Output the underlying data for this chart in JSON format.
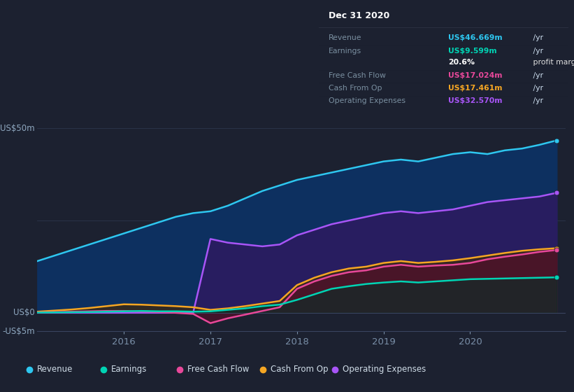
{
  "background_color": "#1c2130",
  "plot_bg_color": "#1c2130",
  "ylim": [
    -5,
    55
  ],
  "xlim": [
    2015.0,
    2021.1
  ],
  "xticks": [
    2016,
    2017,
    2018,
    2019,
    2020
  ],
  "series": {
    "revenue": {
      "label": "Revenue",
      "color": "#2ec7f0",
      "fill_color": "#0d3a5c",
      "x": [
        2015.0,
        2015.2,
        2015.4,
        2015.6,
        2015.8,
        2016.0,
        2016.2,
        2016.4,
        2016.6,
        2016.8,
        2017.0,
        2017.2,
        2017.4,
        2017.6,
        2017.8,
        2018.0,
        2018.2,
        2018.4,
        2018.6,
        2018.8,
        2019.0,
        2019.2,
        2019.4,
        2019.6,
        2019.8,
        2020.0,
        2020.2,
        2020.4,
        2020.6,
        2020.8,
        2021.0
      ],
      "y": [
        14,
        15.5,
        17,
        18.5,
        20,
        21.5,
        23,
        24.5,
        26,
        27,
        27.5,
        29,
        31,
        33,
        34.5,
        36,
        37,
        38,
        39,
        40,
        41,
        41.5,
        41,
        42,
        43,
        43.5,
        43,
        44,
        44.5,
        45.5,
        46.7
      ]
    },
    "operating_expenses": {
      "label": "Operating Expenses",
      "color": "#a855f7",
      "fill_color": "#2d1a5e",
      "x": [
        2015.0,
        2015.2,
        2015.4,
        2015.6,
        2015.8,
        2016.0,
        2016.2,
        2016.4,
        2016.6,
        2016.8,
        2017.0,
        2017.2,
        2017.4,
        2017.6,
        2017.8,
        2018.0,
        2018.2,
        2018.4,
        2018.6,
        2018.8,
        2019.0,
        2019.2,
        2019.4,
        2019.6,
        2019.8,
        2020.0,
        2020.2,
        2020.4,
        2020.6,
        2020.8,
        2021.0
      ],
      "y": [
        0,
        0,
        0,
        0,
        0,
        0,
        0,
        0,
        0,
        0,
        20,
        19,
        18.5,
        18,
        18.5,
        21,
        22.5,
        24,
        25,
        26,
        27,
        27.5,
        27,
        27.5,
        28,
        29,
        30,
        30.5,
        31,
        31.5,
        32.5
      ]
    },
    "cash_from_op": {
      "label": "Cash From Op",
      "color": "#f5a623",
      "fill_color": "#5a3d1a",
      "x": [
        2015.0,
        2015.2,
        2015.4,
        2015.6,
        2015.8,
        2016.0,
        2016.2,
        2016.4,
        2016.6,
        2016.8,
        2017.0,
        2017.2,
        2017.4,
        2017.6,
        2017.8,
        2018.0,
        2018.2,
        2018.4,
        2018.6,
        2018.8,
        2019.0,
        2019.2,
        2019.4,
        2019.6,
        2019.8,
        2020.0,
        2020.2,
        2020.4,
        2020.6,
        2020.8,
        2021.0
      ],
      "y": [
        0.3,
        0.6,
        0.9,
        1.3,
        1.8,
        2.3,
        2.2,
        2.0,
        1.8,
        1.5,
        0.8,
        1.2,
        1.8,
        2.5,
        3.2,
        7.5,
        9.5,
        11,
        12,
        12.5,
        13.5,
        14,
        13.5,
        13.8,
        14.2,
        14.8,
        15.5,
        16.2,
        16.8,
        17.2,
        17.5
      ]
    },
    "free_cash_flow": {
      "label": "Free Cash Flow",
      "color": "#e8489a",
      "fill_color": "#6e1a3d",
      "x": [
        2015.0,
        2015.2,
        2015.4,
        2015.6,
        2015.8,
        2016.0,
        2016.2,
        2016.4,
        2016.6,
        2016.8,
        2017.0,
        2017.2,
        2017.4,
        2017.6,
        2017.8,
        2018.0,
        2018.2,
        2018.4,
        2018.6,
        2018.8,
        2019.0,
        2019.2,
        2019.4,
        2019.6,
        2019.8,
        2020.0,
        2020.2,
        2020.4,
        2020.6,
        2020.8,
        2021.0
      ],
      "y": [
        0.1,
        0.2,
        0.3,
        0.4,
        0.5,
        0.5,
        0.4,
        0.2,
        0.0,
        -0.3,
        -2.8,
        -1.5,
        -0.5,
        0.5,
        1.5,
        6.5,
        8.5,
        10,
        11,
        11.5,
        12.5,
        13,
        12.5,
        12.8,
        13,
        13.5,
        14.5,
        15.2,
        15.8,
        16.5,
        17.0
      ]
    },
    "earnings": {
      "label": "Earnings",
      "color": "#00d4b4",
      "fill_color": "#0a4a40",
      "x": [
        2015.0,
        2015.2,
        2015.4,
        2015.6,
        2015.8,
        2016.0,
        2016.2,
        2016.4,
        2016.6,
        2016.8,
        2017.0,
        2017.2,
        2017.4,
        2017.6,
        2017.8,
        2018.0,
        2018.2,
        2018.4,
        2018.6,
        2018.8,
        2019.0,
        2019.2,
        2019.4,
        2019.6,
        2019.8,
        2020.0,
        2020.2,
        2020.4,
        2020.6,
        2020.8,
        2021.0
      ],
      "y": [
        0.05,
        0.1,
        0.15,
        0.2,
        0.3,
        0.4,
        0.5,
        0.4,
        0.4,
        0.3,
        0.4,
        0.8,
        1.2,
        1.8,
        2.2,
        3.5,
        5,
        6.5,
        7.2,
        7.8,
        8.2,
        8.5,
        8.2,
        8.5,
        8.8,
        9.1,
        9.2,
        9.3,
        9.4,
        9.5,
        9.6
      ]
    }
  },
  "info_box": {
    "title": "Dec 31 2020",
    "rows": [
      {
        "label": "Revenue",
        "value": "US$46.669m",
        "unit": " /yr",
        "value_color": "#2ec7f0"
      },
      {
        "label": "Earnings",
        "value": "US$9.599m",
        "unit": " /yr",
        "value_color": "#00d4b4"
      },
      {
        "label": "",
        "value": "20.6%",
        "unit": " profit margin",
        "value_color": "#ffffff"
      },
      {
        "label": "Free Cash Flow",
        "value": "US$17.024m",
        "unit": " /yr",
        "value_color": "#e8489a"
      },
      {
        "label": "Cash From Op",
        "value": "US$17.461m",
        "unit": " /yr",
        "value_color": "#f5a623"
      },
      {
        "label": "Operating Expenses",
        "value": "US$32.570m",
        "unit": " /yr",
        "value_color": "#a855f7"
      }
    ]
  },
  "legend": [
    {
      "label": "Revenue",
      "color": "#2ec7f0"
    },
    {
      "label": "Earnings",
      "color": "#00d4b4"
    },
    {
      "label": "Free Cash Flow",
      "color": "#e8489a"
    },
    {
      "label": "Cash From Op",
      "color": "#f5a623"
    },
    {
      "label": "Operating Expenses",
      "color": "#a855f7"
    }
  ]
}
